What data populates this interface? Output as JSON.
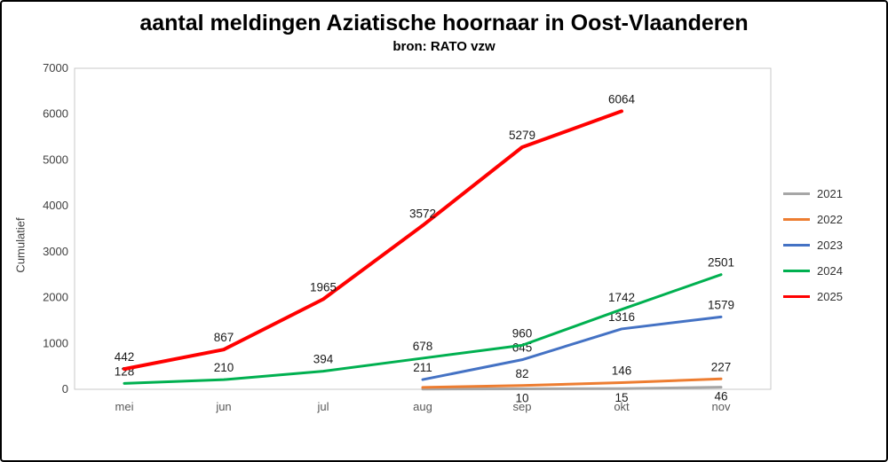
{
  "chart_data": {
    "type": "line",
    "title": "aantal meldingen Aziatische hoornaar in Oost-Vlaanderen",
    "subtitle": "bron: RATO vzw",
    "ylabel": "Cumulatief",
    "categories": [
      "mei",
      "jun",
      "jul",
      "aug",
      "sep",
      "okt",
      "nov"
    ],
    "ylim": [
      0,
      7000
    ],
    "ytick_step": 1000,
    "grid": false,
    "legend_position": "right",
    "plot_border_color": "#c9c9c9",
    "axis_text_color": "#595959",
    "tick_text_color": "#404040",
    "label_text_color": "#1a1a1a",
    "series": [
      {
        "name": "2021",
        "color": "#A6A6A6",
        "stroke_width": 3,
        "label_position": "below",
        "values": [
          null,
          null,
          null,
          5,
          10,
          15,
          46
        ],
        "labels": [
          null,
          null,
          null,
          null,
          "10",
          "15",
          "46"
        ]
      },
      {
        "name": "2022",
        "color": "#ED7D31",
        "stroke_width": 3,
        "label_position": "above",
        "values": [
          null,
          null,
          null,
          40,
          82,
          146,
          227
        ],
        "labels": [
          null,
          null,
          null,
          null,
          "82",
          "146",
          "227"
        ]
      },
      {
        "name": "2023",
        "color": "#4472C4",
        "stroke_width": 3,
        "label_position": "above",
        "values": [
          null,
          null,
          null,
          211,
          645,
          1316,
          1579
        ],
        "labels": [
          null,
          null,
          null,
          "211",
          "645",
          "1316",
          "1579"
        ]
      },
      {
        "name": "2024",
        "color": "#00B050",
        "stroke_width": 3,
        "label_position": "above",
        "values": [
          128,
          210,
          394,
          678,
          960,
          1742,
          2501
        ],
        "labels": [
          "128",
          "210",
          "394",
          "678",
          "960",
          "1742",
          "2501"
        ]
      },
      {
        "name": "2025",
        "color": "#FF0000",
        "stroke_width": 4,
        "label_position": "above",
        "values": [
          442,
          867,
          1965,
          3572,
          5279,
          6064,
          null
        ],
        "labels": [
          "442",
          "867",
          "1965",
          "3572",
          "5279",
          "6064",
          null
        ]
      }
    ]
  }
}
